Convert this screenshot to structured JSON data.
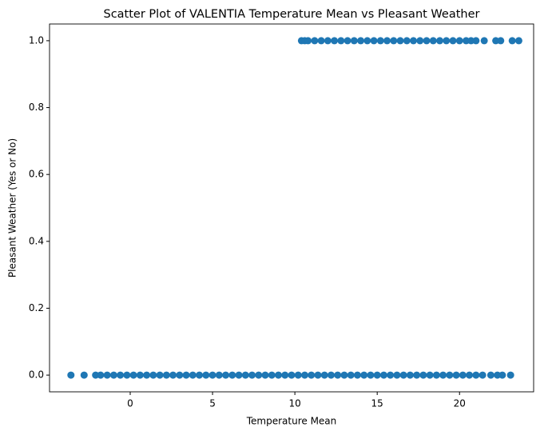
{
  "chart_data": {
    "type": "scatter",
    "title": "Scatter Plot of VALENTIA Temperature Mean vs Pleasant Weather",
    "x_label": "Temperature Mean",
    "y_label": "Pleasant Weather (Yes or No)",
    "color": "#1f77b4",
    "x": [
      -3.6,
      -2.8,
      -2.1,
      -1.8,
      -1.4,
      -1.0,
      -0.6,
      -0.2,
      0.2,
      0.6,
      1.0,
      1.4,
      1.8,
      2.2,
      2.6,
      3.0,
      3.4,
      3.8,
      4.2,
      4.6,
      5.0,
      5.4,
      5.8,
      6.2,
      6.6,
      7.0,
      7.4,
      7.8,
      8.2,
      8.6,
      9.0,
      9.4,
      9.8,
      10.2,
      10.6,
      11.0,
      11.4,
      11.8,
      12.2,
      12.6,
      13.0,
      13.4,
      13.8,
      14.2,
      14.6,
      15.0,
      15.4,
      15.8,
      16.2,
      16.6,
      17.0,
      17.4,
      17.8,
      18.2,
      18.6,
      19.0,
      19.4,
      19.8,
      20.2,
      20.6,
      21.0,
      21.4,
      21.9,
      22.3,
      22.6,
      23.1,
      10.4,
      10.6,
      10.8,
      11.2,
      11.6,
      12.0,
      12.4,
      12.8,
      13.2,
      13.6,
      14.0,
      14.4,
      14.8,
      15.2,
      15.6,
      16.0,
      16.4,
      16.8,
      17.2,
      17.6,
      18.0,
      18.4,
      18.8,
      19.2,
      19.6,
      20.0,
      20.4,
      20.7,
      21.0,
      21.5,
      22.2,
      22.5,
      23.2,
      23.6
    ],
    "values": [
      0,
      0,
      0,
      0,
      0,
      0,
      0,
      0,
      0,
      0,
      0,
      0,
      0,
      0,
      0,
      0,
      0,
      0,
      0,
      0,
      0,
      0,
      0,
      0,
      0,
      0,
      0,
      0,
      0,
      0,
      0,
      0,
      0,
      0,
      0,
      0,
      0,
      0,
      0,
      0,
      0,
      0,
      0,
      0,
      0,
      0,
      0,
      0,
      0,
      0,
      0,
      0,
      0,
      0,
      0,
      0,
      0,
      0,
      0,
      0,
      0,
      0,
      0,
      0,
      0,
      0,
      1,
      1,
      1,
      1,
      1,
      1,
      1,
      1,
      1,
      1,
      1,
      1,
      1,
      1,
      1,
      1,
      1,
      1,
      1,
      1,
      1,
      1,
      1,
      1,
      1,
      1,
      1,
      1,
      1,
      1,
      1,
      1,
      1,
      1
    ],
    "xlim": [
      -4.9,
      24.5
    ],
    "ylim": [
      -0.05,
      1.05
    ],
    "xticks": [
      0,
      5,
      10,
      15,
      20
    ],
    "yticks": [
      {
        "value": 0,
        "label": "0.0"
      },
      {
        "value": 0.2,
        "label": "0.2"
      },
      {
        "value": 0.4,
        "label": "0.4"
      },
      {
        "value": 0.6,
        "label": "0.6"
      },
      {
        "value": 0.8,
        "label": "0.8"
      },
      {
        "value": 1,
        "label": "1.0"
      }
    ]
  }
}
